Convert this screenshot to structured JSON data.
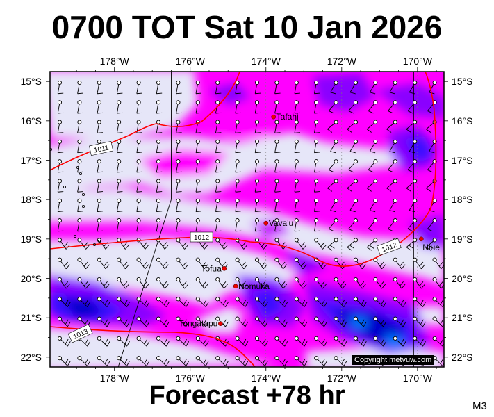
{
  "title": "0700 TOT Sat 10 Jan 2026",
  "footer": "Forecast +78 hr",
  "model_code": "M3",
  "copyright": "Copyright metvuw.com",
  "map": {
    "lon_labels": [
      "178°W",
      "176°W",
      "174°W",
      "172°W",
      "170°W"
    ],
    "lon_values": [
      -178,
      -176,
      -174,
      -172,
      -170
    ],
    "lat_labels": [
      "15°S",
      "16°S",
      "17°S",
      "18°S",
      "19°S",
      "20°S",
      "21°S",
      "22°S"
    ],
    "lat_values": [
      -15,
      -16,
      -17,
      -18,
      -19,
      -20,
      -21,
      -22
    ],
    "lon_range": [
      -179.7,
      -169.3
    ],
    "lat_range": [
      -14.75,
      -22.25
    ],
    "places": [
      {
        "name": "Tafahi",
        "lon": -173.8,
        "lat": -15.9
      },
      {
        "name": "Vava'u",
        "lon": -174.0,
        "lat": -18.6
      },
      {
        "name": "Niue",
        "lon": -169.9,
        "lat": -19.0
      },
      {
        "name": "Tofua",
        "lon": -175.1,
        "lat": -19.75
      },
      {
        "name": "Nomuka",
        "lon": -174.8,
        "lat": -20.2
      },
      {
        "name": "Tongatapu",
        "lon": -175.2,
        "lat": -21.15
      }
    ],
    "isobars": [
      {
        "label": "1011",
        "lon": -178.35,
        "lat": -16.7
      },
      {
        "label": "1012",
        "lon": -175.7,
        "lat": -18.95
      },
      {
        "label": "1012",
        "lon": -170.75,
        "lat": -19.2
      },
      {
        "label": "1013",
        "lon": -178.9,
        "lat": -21.4
      }
    ],
    "colors": {
      "low_wind": "#e6e6f8",
      "mid_wind": "#ff00ff",
      "mid_wind_2": "#c800ff",
      "high_wind": "#8a00ff",
      "strong_wind": "#3a10ff",
      "gale": "#0000cc",
      "storm": "#0077ff",
      "isobar": "#ff0000",
      "place_dot": "#ee0000"
    }
  }
}
